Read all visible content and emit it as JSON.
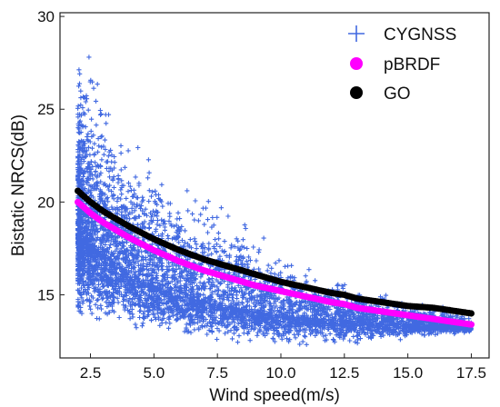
{
  "chart_data": {
    "type": "scatter",
    "title": "",
    "xlabel": "Wind speed(m/s)",
    "ylabel": "Bistatic NRCS(dB)",
    "xlim": [
      1.3,
      18.2
    ],
    "ylim": [
      11.6,
      30.2
    ],
    "xticks": [
      2.5,
      5.0,
      7.5,
      10.0,
      12.5,
      15.0,
      17.5
    ],
    "xtick_labels": [
      "2.5",
      "5.0",
      "7.5",
      "10.0",
      "12.5",
      "15.0",
      "17.5"
    ],
    "yticks": [
      15,
      20,
      25,
      30
    ],
    "ytick_labels": [
      "15",
      "20",
      "25",
      "30"
    ],
    "grid": false,
    "legend_position": "top-right",
    "series": [
      {
        "name": "CYGNSS",
        "marker": "plus",
        "color": "#4169e1",
        "x_range": [
          2.0,
          17.5
        ],
        "center_curve": [
          [
            2.0,
            18.6
          ],
          [
            2.5,
            17.9
          ],
          [
            3.0,
            17.2
          ],
          [
            4.0,
            16.2
          ],
          [
            5.0,
            15.5
          ],
          [
            6.0,
            15.0
          ],
          [
            7.5,
            14.5
          ],
          [
            9.0,
            14.1
          ],
          [
            10.0,
            13.9
          ],
          [
            12.5,
            13.6
          ],
          [
            15.0,
            13.4
          ],
          [
            17.5,
            13.2
          ]
        ],
        "upper_envelope": [
          [
            2.0,
            26.5
          ],
          [
            2.5,
            27.5
          ],
          [
            3.0,
            25.0
          ],
          [
            4.0,
            23.0
          ],
          [
            5.0,
            21.5
          ],
          [
            6.0,
            20.5
          ],
          [
            7.5,
            19.5
          ],
          [
            9.0,
            18.0
          ],
          [
            10.0,
            17.0
          ],
          [
            12.5,
            15.5
          ],
          [
            15.0,
            14.5
          ],
          [
            17.5,
            13.8
          ]
        ],
        "lower_envelope": [
          [
            2.0,
            14.2
          ],
          [
            3.0,
            13.8
          ],
          [
            5.0,
            13.2
          ],
          [
            7.5,
            12.8
          ],
          [
            10.0,
            12.6
          ],
          [
            12.5,
            12.6
          ],
          [
            15.0,
            12.8
          ],
          [
            17.5,
            13.0
          ]
        ]
      },
      {
        "name": "pBRDF",
        "marker": "circle",
        "color": "#ff00ff",
        "x": [
          2.0,
          2.5,
          3.0,
          3.5,
          4.0,
          5.0,
          6.0,
          7.0,
          7.5,
          8.0,
          9.0,
          10.0,
          11.0,
          12.0,
          12.5,
          13.0,
          14.0,
          15.0,
          16.0,
          17.0,
          17.5
        ],
        "y": [
          20.0,
          19.4,
          18.9,
          18.5,
          18.1,
          17.4,
          16.8,
          16.3,
          16.1,
          15.9,
          15.5,
          15.2,
          14.9,
          14.6,
          14.5,
          14.3,
          14.1,
          13.9,
          13.7,
          13.5,
          13.4
        ]
      },
      {
        "name": "GO",
        "marker": "circle",
        "color": "#000000",
        "x": [
          2.0,
          2.5,
          3.0,
          3.5,
          4.0,
          5.0,
          6.0,
          7.0,
          7.5,
          8.0,
          9.0,
          10.0,
          11.0,
          12.0,
          12.5,
          13.0,
          14.0,
          15.0,
          16.0,
          17.0,
          17.5
        ],
        "y": [
          20.6,
          20.0,
          19.5,
          19.1,
          18.7,
          18.0,
          17.4,
          16.9,
          16.7,
          16.5,
          16.1,
          15.7,
          15.4,
          15.1,
          15.0,
          14.8,
          14.6,
          14.4,
          14.3,
          14.1,
          14.0
        ]
      }
    ]
  }
}
